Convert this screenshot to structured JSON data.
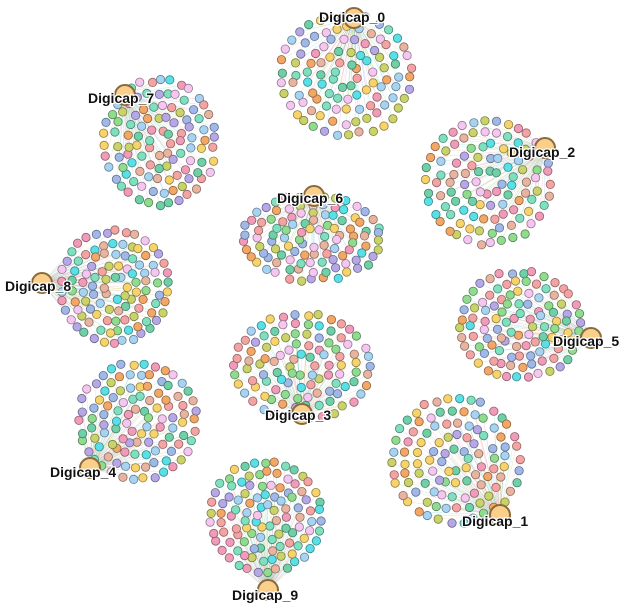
{
  "graph": {
    "hubs": [
      {
        "id": "hub-0",
        "label": "Digicap_0"
      },
      {
        "id": "hub-1",
        "label": "Digicap_1"
      },
      {
        "id": "hub-2",
        "label": "Digicap_2"
      },
      {
        "id": "hub-3",
        "label": "Digicap_3"
      },
      {
        "id": "hub-4",
        "label": "Digicap_4"
      },
      {
        "id": "hub-5",
        "label": "Digicap_5"
      },
      {
        "id": "hub-6",
        "label": "Digicap_6"
      },
      {
        "id": "hub-7",
        "label": "Digicap_7"
      },
      {
        "id": "hub-8",
        "label": "Digicap_8"
      },
      {
        "id": "hub-9",
        "label": "Digicap_9"
      }
    ],
    "colors": {
      "hub_fill": "#f9cf8a",
      "hub_stroke": "#8a6a3a",
      "leaf_palette": [
        "#f4a3a3",
        "#a7d3f2",
        "#8fdc8f",
        "#f2a766",
        "#f5c6f0",
        "#6fd0a8",
        "#f6d36b",
        "#b6a8e6",
        "#58e0e6",
        "#c9d36a",
        "#f09bb7",
        "#9fb8e8",
        "#e8b4a0",
        "#7fe0c0"
      ]
    }
  }
}
